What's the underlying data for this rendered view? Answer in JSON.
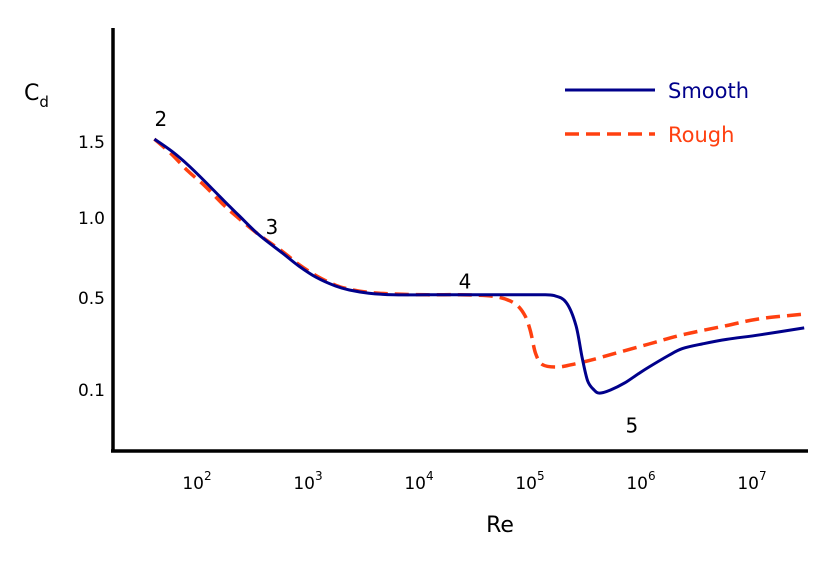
{
  "chart_data": {
    "type": "line",
    "title": "",
    "xlabel": "Re",
    "ylabel": "C",
    "ylabel_sub": "d",
    "x_scale": "log",
    "xlim": [
      25,
      30000000
    ],
    "ylim": [
      0,
      2.2
    ],
    "grid": false,
    "legend_position": "top-right",
    "x_ticks": [
      {
        "base": "10",
        "exp": "2",
        "value": 100
      },
      {
        "base": "10",
        "exp": "3",
        "value": 1000
      },
      {
        "base": "10",
        "exp": "4",
        "value": 10000
      },
      {
        "base": "10",
        "exp": "5",
        "value": 100000
      },
      {
        "base": "10",
        "exp": "6",
        "value": 1000000
      },
      {
        "base": "10",
        "exp": "7",
        "value": 10000000
      }
    ],
    "y_ticks": [
      {
        "label": "1.5",
        "value": 1.5
      },
      {
        "label": "1.0",
        "value": 1.0
      },
      {
        "label": "0.5",
        "value": 0.5
      },
      {
        "label": "0.1",
        "value": 0.1
      }
    ],
    "series": [
      {
        "name": "Smooth",
        "color": "#00008b",
        "style": "solid",
        "x": [
          35,
          50,
          70,
          100,
          150,
          200,
          300,
          500,
          700,
          1000,
          1500,
          2000,
          3000,
          5000,
          10000,
          20000,
          50000,
          100000,
          140000,
          180000,
          220000,
          250000,
          280000,
          320000,
          360000,
          450000,
          600000,
          800000,
          1000000,
          1500000,
          2000000,
          3000000,
          5000000,
          10000000,
          25000000
        ],
        "y": [
          1.52,
          1.44,
          1.35,
          1.24,
          1.11,
          1.02,
          0.9,
          0.78,
          0.7,
          0.63,
          0.575,
          0.55,
          0.53,
          0.52,
          0.52,
          0.52,
          0.52,
          0.52,
          0.515,
          0.48,
          0.38,
          0.24,
          0.14,
          0.1,
          0.095,
          0.1,
          0.13,
          0.17,
          0.2,
          0.25,
          0.28,
          0.3,
          0.32,
          0.34,
          0.37
        ]
      },
      {
        "name": "Rough",
        "color": "#ff4010",
        "style": "dashed",
        "x": [
          35,
          50,
          70,
          100,
          150,
          200,
          300,
          500,
          700,
          1000,
          1500,
          2000,
          3000,
          5000,
          10000,
          20000,
          40000,
          60000,
          75000,
          85000,
          95000,
          110000,
          150000,
          200000,
          300000,
          500000,
          1000000,
          2000000,
          5000000,
          10000000,
          25000000
        ],
        "y": [
          1.52,
          1.42,
          1.31,
          1.21,
          1.08,
          1.0,
          0.9,
          0.79,
          0.71,
          0.64,
          0.58,
          0.555,
          0.535,
          0.525,
          0.52,
          0.52,
          0.51,
          0.48,
          0.43,
          0.36,
          0.26,
          0.21,
          0.2,
          0.21,
          0.23,
          0.26,
          0.3,
          0.34,
          0.38,
          0.41,
          0.43
        ]
      }
    ],
    "annotations": [
      {
        "text": "2",
        "x": 40,
        "y": 1.61
      },
      {
        "text": "3",
        "x": 400,
        "y": 0.9
      },
      {
        "text": "4",
        "x": 22000,
        "y": 0.56
      },
      {
        "text": "5",
        "x": 700000,
        "y": 0.03
      }
    ]
  }
}
